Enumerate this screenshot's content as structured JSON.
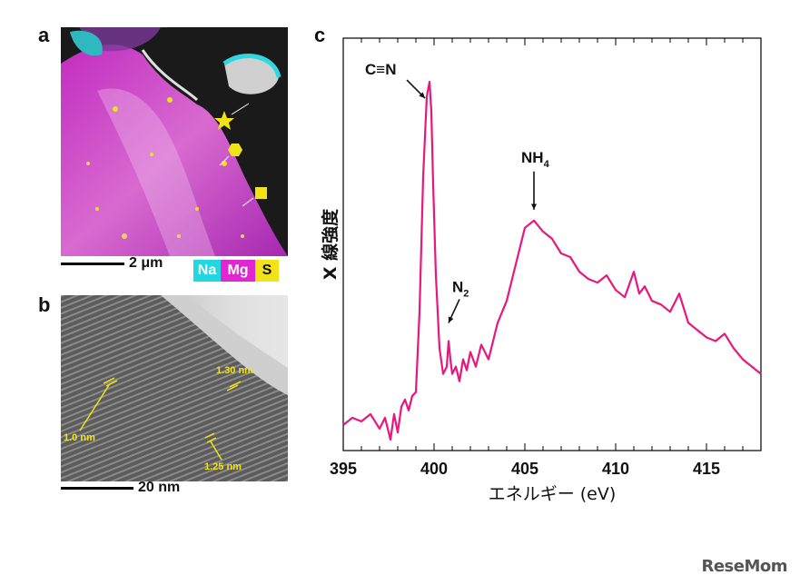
{
  "panels": {
    "a": {
      "letter": "a",
      "scale_label": "2 μm",
      "legend": [
        {
          "label": "Na",
          "color": "#20d8e0"
        },
        {
          "label": "Mg",
          "color": "#e026d2"
        },
        {
          "label": "S",
          "color": "#f2e318"
        }
      ]
    },
    "b": {
      "letter": "b",
      "scale_label": "20 nm",
      "annotations": [
        "1.30 nm",
        "1.0 nm",
        "1.25 nm"
      ]
    },
    "c": {
      "letter": "c"
    }
  },
  "watermark": "ReseMom",
  "colors": {
    "spectrum_line": "#e8177e",
    "annotation_yellow": "#f2e318"
  },
  "chart_data": {
    "type": "line",
    "title": "",
    "xlabel": "エネルギー (eV)",
    "ylabel": "X 線強度",
    "xlim": [
      395,
      418
    ],
    "ylim": [
      0,
      1
    ],
    "xticks": [
      395,
      400,
      405,
      410,
      415
    ],
    "grid": false,
    "series": [
      {
        "x": [
          395.0,
          395.5,
          396.0,
          396.5,
          397.0,
          397.3,
          397.6,
          397.8,
          398.0,
          398.2,
          398.4,
          398.6,
          398.8,
          399.0,
          399.2,
          399.4,
          399.6,
          399.75,
          399.85,
          399.95,
          400.1,
          400.3,
          400.5,
          400.7,
          400.8,
          400.9,
          401.0,
          401.2,
          401.4,
          401.6,
          401.8,
          402.0,
          402.3,
          402.6,
          403.0,
          403.5,
          404.0,
          404.5,
          405.0,
          405.5,
          406.0,
          406.5,
          407.0,
          407.5,
          408.0,
          408.5,
          409.0,
          409.5,
          410.0,
          410.5,
          411.0,
          411.3,
          411.6,
          412.0,
          412.5,
          413.0,
          413.5,
          414.0,
          414.5,
          415.0,
          415.5,
          416.0,
          416.5,
          417.0,
          417.5,
          418.0
        ],
        "y": [
          0.04,
          0.06,
          0.05,
          0.07,
          0.03,
          0.06,
          0.0,
          0.07,
          0.02,
          0.09,
          0.11,
          0.08,
          0.12,
          0.13,
          0.35,
          0.72,
          0.94,
          0.98,
          0.9,
          0.7,
          0.45,
          0.25,
          0.18,
          0.2,
          0.27,
          0.22,
          0.18,
          0.2,
          0.16,
          0.22,
          0.19,
          0.24,
          0.2,
          0.26,
          0.22,
          0.32,
          0.38,
          0.48,
          0.58,
          0.6,
          0.57,
          0.55,
          0.51,
          0.5,
          0.46,
          0.44,
          0.43,
          0.45,
          0.41,
          0.39,
          0.46,
          0.4,
          0.42,
          0.38,
          0.37,
          0.35,
          0.4,
          0.32,
          0.3,
          0.28,
          0.27,
          0.29,
          0.25,
          0.22,
          0.2,
          0.18
        ]
      }
    ],
    "annotations": [
      {
        "label": "C≡N",
        "x": 399.8,
        "y": 0.98
      },
      {
        "label": "N2",
        "x": 400.8,
        "y": 0.3
      },
      {
        "label": "NH4",
        "x": 405.5,
        "y": 0.61
      }
    ]
  }
}
